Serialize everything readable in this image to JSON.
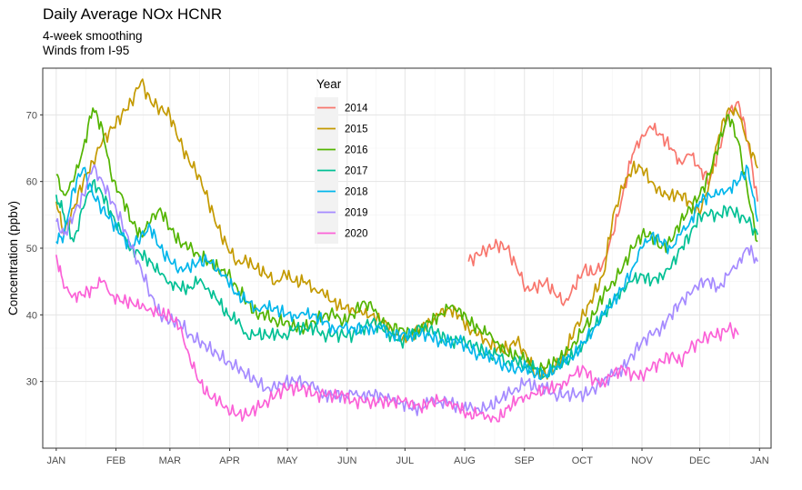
{
  "header": {
    "title": "Daily Average NOx HCNR",
    "subtitle_lines": [
      "4-week smoothing",
      "Winds from I-95"
    ]
  },
  "chart_data": {
    "type": "line",
    "title": "Daily Average NOx HCNR",
    "subtitle": "4-week smoothing\nWinds from I-95",
    "xlabel": "",
    "ylabel": "Concentration (ppbv)",
    "x_unit": "day of year",
    "xlim": [
      -6,
      372
    ],
    "ylim": [
      20,
      77
    ],
    "x_ticks": [
      {
        "label": "JAN",
        "x": 1
      },
      {
        "label": "FEB",
        "x": 32
      },
      {
        "label": "MAR",
        "x": 60
      },
      {
        "label": "APR",
        "x": 91
      },
      {
        "label": "MAY",
        "x": 121
      },
      {
        "label": "JUN",
        "x": 152
      },
      {
        "label": "JUL",
        "x": 182
      },
      {
        "label": "AUG",
        "x": 213
      },
      {
        "label": "SEP",
        "x": 244
      },
      {
        "label": "OCT",
        "x": 274
      },
      {
        "label": "NOV",
        "x": 305
      },
      {
        "label": "DEC",
        "x": 335
      },
      {
        "label": "JAN",
        "x": 366
      }
    ],
    "y_ticks": [
      30,
      40,
      50,
      60,
      70
    ],
    "grid": true,
    "legend": {
      "title": "Year",
      "position": "top-center-inside"
    },
    "series": [
      {
        "name": "2014",
        "color": "#F8766D",
        "x": [
          215,
          220,
          225,
          230,
          235,
          240,
          245,
          250,
          255,
          260,
          265,
          270,
          275,
          280,
          285,
          290,
          295,
          300,
          305,
          310,
          315,
          320,
          325,
          330,
          335,
          340,
          345,
          350,
          355,
          360,
          365
        ],
        "y": [
          48,
          49,
          50,
          50.5,
          50,
          47,
          44,
          44,
          45,
          43,
          42,
          44,
          47,
          46,
          48,
          52,
          58,
          64,
          67,
          68,
          67,
          65,
          63,
          64,
          62,
          60,
          65,
          70,
          72,
          66,
          57
        ]
      },
      {
        "name": "2015",
        "color": "#C49A00",
        "x": [
          1,
          5,
          10,
          15,
          20,
          25,
          30,
          35,
          40,
          45,
          50,
          55,
          60,
          65,
          70,
          75,
          80,
          85,
          90,
          95,
          100,
          105,
          110,
          115,
          120,
          125,
          130,
          135,
          140,
          145,
          150,
          155,
          160,
          165,
          170,
          175,
          180,
          185,
          190,
          195,
          200,
          205,
          210,
          215,
          220,
          225,
          230,
          235,
          240,
          245,
          250,
          255,
          260,
          265,
          270,
          275,
          280,
          285,
          290,
          295,
          300,
          305,
          310,
          315,
          320,
          325,
          330,
          335,
          340,
          345,
          350,
          355,
          360,
          365
        ],
        "y": [
          57,
          52,
          56,
          60,
          63,
          66,
          68,
          70,
          72,
          75,
          72,
          71,
          70,
          66,
          63,
          61,
          57,
          53,
          50,
          48,
          48,
          47,
          46,
          45,
          46,
          45,
          45,
          44,
          43,
          42,
          41,
          41,
          40,
          40,
          39,
          38,
          36,
          37,
          38,
          39,
          40,
          41,
          40,
          38,
          37,
          36,
          35,
          35,
          36,
          34,
          31,
          31,
          32,
          34,
          38,
          40,
          43,
          46,
          55,
          59,
          62,
          62,
          60,
          58,
          58,
          58,
          57,
          55,
          60,
          67,
          71,
          70,
          66,
          62
        ]
      },
      {
        "name": "2016",
        "color": "#53B400",
        "x": [
          1,
          5,
          10,
          15,
          20,
          25,
          30,
          35,
          40,
          45,
          50,
          55,
          60,
          65,
          70,
          75,
          80,
          85,
          90,
          95,
          100,
          105,
          110,
          115,
          120,
          125,
          130,
          135,
          140,
          145,
          150,
          155,
          160,
          165,
          170,
          175,
          180,
          185,
          190,
          195,
          200,
          205,
          210,
          215,
          220,
          225,
          230,
          235,
          240,
          245,
          250,
          255,
          260,
          265,
          270,
          275,
          280,
          285,
          290,
          295,
          300,
          305,
          310,
          315,
          320,
          325,
          330,
          335,
          340,
          345,
          350,
          355,
          360,
          365
        ],
        "y": [
          61,
          58,
          60,
          65,
          71,
          68,
          60,
          58,
          54,
          52,
          54,
          56,
          53,
          51,
          50,
          49,
          48,
          47,
          46,
          44,
          42,
          40,
          40,
          39,
          39,
          38,
          38,
          39,
          40,
          40,
          39,
          40,
          42,
          41,
          39,
          38,
          38,
          37,
          38,
          39,
          40,
          41,
          41,
          39,
          38,
          37,
          36,
          34,
          34,
          33,
          32,
          32,
          33,
          34,
          36,
          38,
          40,
          43,
          45,
          47,
          50,
          52,
          52,
          50,
          51,
          54,
          56,
          58,
          61,
          66,
          70,
          66,
          58,
          51
        ]
      },
      {
        "name": "2017",
        "color": "#00C094",
        "x": [
          1,
          5,
          10,
          15,
          20,
          25,
          30,
          35,
          40,
          45,
          50,
          55,
          60,
          65,
          70,
          75,
          80,
          85,
          90,
          95,
          100,
          105,
          110,
          115,
          120,
          125,
          130,
          135,
          140,
          145,
          150,
          155,
          160,
          165,
          170,
          175,
          180,
          185,
          190,
          195,
          200,
          205,
          210,
          215,
          220,
          225,
          230,
          235,
          240,
          245,
          250,
          255,
          260,
          265,
          270,
          275,
          280,
          285,
          290,
          295,
          300,
          305,
          310,
          315,
          320,
          325,
          330,
          335,
          340,
          345,
          350,
          355,
          360,
          365
        ],
        "y": [
          58,
          55,
          51,
          56,
          60,
          58,
          55,
          52,
          50,
          49,
          48,
          46,
          45,
          44,
          44,
          45,
          44,
          42,
          40,
          39,
          37,
          37,
          37,
          37,
          37,
          38,
          38,
          38,
          37,
          37,
          37,
          37,
          38,
          39,
          38,
          37,
          36,
          37,
          38,
          38,
          37,
          36,
          36,
          36,
          35,
          34,
          34,
          33,
          33,
          32,
          32,
          31,
          32,
          33,
          34,
          36,
          38,
          40,
          42,
          44,
          45,
          46,
          45,
          46,
          47,
          50,
          52,
          55,
          55,
          55,
          56,
          55,
          54,
          52
        ]
      },
      {
        "name": "2018",
        "color": "#00B6EB",
        "x": [
          1,
          5,
          10,
          15,
          20,
          25,
          30,
          35,
          40,
          45,
          50,
          55,
          60,
          65,
          70,
          75,
          80,
          85,
          90,
          95,
          100,
          105,
          110,
          115,
          120,
          125,
          130,
          135,
          140,
          145,
          150,
          155,
          160,
          165,
          170,
          175,
          180,
          185,
          190,
          195,
          200,
          205,
          210,
          215,
          220,
          225,
          230,
          235,
          240,
          245,
          250,
          255,
          260,
          265,
          270,
          275,
          280,
          285,
          290,
          295,
          300,
          305,
          310,
          315,
          320,
          325,
          330,
          335,
          340,
          345,
          350,
          355,
          360,
          365
        ],
        "y": [
          51,
          52,
          59,
          62,
          58,
          56,
          54,
          52,
          50,
          52,
          53,
          50,
          48,
          47,
          47,
          48,
          48,
          47,
          45,
          43,
          42,
          41,
          41,
          41,
          40,
          40,
          40,
          40,
          39,
          38,
          38,
          38,
          38,
          38,
          38,
          37,
          37,
          37,
          37,
          37,
          36,
          36,
          36,
          35,
          34,
          34,
          33,
          32,
          32,
          32,
          31,
          31,
          32,
          33,
          34,
          36,
          38,
          40,
          42,
          44,
          47,
          50,
          52,
          51,
          50,
          52,
          54,
          57,
          58,
          58,
          59,
          60,
          62,
          54
        ]
      },
      {
        "name": "2019",
        "color": "#A58AFF",
        "x": [
          1,
          5,
          10,
          15,
          20,
          25,
          30,
          35,
          40,
          45,
          50,
          55,
          60,
          65,
          70,
          75,
          80,
          85,
          90,
          95,
          100,
          105,
          110,
          115,
          120,
          125,
          130,
          135,
          140,
          145,
          150,
          155,
          160,
          165,
          170,
          175,
          180,
          185,
          190,
          195,
          200,
          205,
          210,
          215,
          220,
          225,
          230,
          235,
          240,
          245,
          250,
          255,
          260,
          265,
          270,
          275,
          280,
          285,
          290,
          295,
          300,
          305,
          310,
          315,
          320,
          325,
          330,
          335,
          340,
          345,
          350,
          355,
          360,
          365
        ],
        "y": [
          54,
          52,
          55,
          58,
          62,
          60,
          57,
          54,
          50,
          47,
          43,
          40,
          39,
          39,
          37,
          36,
          35,
          34,
          33,
          32,
          31,
          30,
          29,
          29,
          30,
          30,
          30,
          29,
          28,
          28,
          28,
          28,
          28,
          28,
          28,
          27,
          27,
          26,
          26,
          27,
          27,
          27,
          26,
          26,
          26,
          26,
          27,
          28,
          29,
          30,
          29,
          29,
          28,
          28,
          28,
          28,
          29,
          30,
          31,
          32,
          34,
          36,
          37,
          38,
          40,
          42,
          43,
          45,
          45,
          44,
          46,
          48,
          50,
          48
        ]
      },
      {
        "name": "2020",
        "color": "#FB61D7",
        "x": [
          1,
          5,
          10,
          15,
          20,
          25,
          30,
          35,
          40,
          45,
          50,
          55,
          60,
          65,
          70,
          75,
          80,
          85,
          90,
          95,
          100,
          105,
          110,
          115,
          120,
          125,
          130,
          135,
          140,
          145,
          150,
          155,
          160,
          165,
          170,
          175,
          180,
          185,
          190,
          195,
          200,
          205,
          210,
          215,
          220,
          225,
          230,
          235,
          240,
          245,
          250,
          255,
          260,
          265,
          270,
          275,
          280,
          285,
          290,
          295,
          300,
          305,
          310,
          315,
          320,
          325,
          330,
          335,
          340,
          345,
          350,
          355
        ],
        "y": [
          49,
          44,
          43,
          43,
          44,
          45,
          43,
          42,
          42,
          41,
          41,
          40,
          40,
          38,
          34,
          30,
          28,
          27,
          26,
          25,
          25,
          26,
          27,
          28,
          29,
          29,
          29,
          28,
          28,
          28,
          28,
          27,
          27,
          27,
          27,
          27,
          27,
          27,
          26,
          27,
          27,
          27,
          26,
          25,
          25,
          25,
          24,
          26,
          27,
          28,
          28,
          29,
          29,
          30,
          31,
          32,
          30,
          30,
          31,
          32,
          31,
          31,
          32,
          33,
          34,
          33,
          35,
          36,
          37,
          37,
          38,
          37
        ]
      }
    ]
  }
}
